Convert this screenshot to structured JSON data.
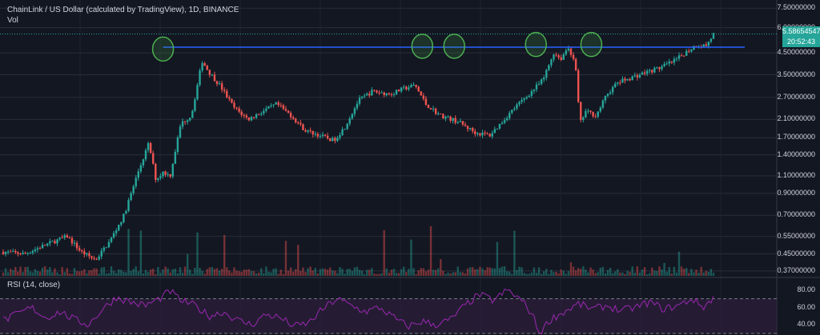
{
  "header": {
    "title": "ChainLink / US Dollar (calculated by TradingView), 1D, BINANCE",
    "vol_label": "Vol"
  },
  "rsi": {
    "label": "RSI (14, close)",
    "ticks": [
      "80.00",
      "60.00",
      "40.00"
    ]
  },
  "price_axis": {
    "ticks": [
      "7.50000000",
      "6.00000000",
      "4.50000000",
      "3.50000000",
      "2.70000000",
      "2.10000000",
      "1.70000000",
      "1.40000000",
      "1.10000000",
      "0.90000000",
      "0.70000000",
      "0.55000000",
      "0.45000000",
      "0.37000000"
    ],
    "current_price": "5.58654547",
    "countdown": "20:52:43"
  },
  "colors": {
    "background": "#131722",
    "up": "#26a69a",
    "down": "#ef5350",
    "resistance_line": "#2962ff",
    "highlight_circle": "#4caf50",
    "rsi_line": "#9c27b0",
    "rsi_band": "#2a1e3a"
  },
  "chart_data": {
    "type": "candlestick",
    "title": "ChainLink / US Dollar (calculated by TradingView), 1D, BINANCE",
    "y_scale": "log",
    "ylim": [
      0.35,
      7.8
    ],
    "resistance_level": 4.8,
    "last_price": 5.58654547,
    "highlights": [
      {
        "x": 0.225,
        "y": 4.7
      },
      {
        "x": 0.59,
        "y": 4.85
      },
      {
        "x": 0.635,
        "y": 4.85
      },
      {
        "x": 0.75,
        "y": 4.95
      },
      {
        "x": 0.828,
        "y": 4.95
      }
    ],
    "close_path": [
      [
        0.0,
        0.46
      ],
      [
        0.03,
        0.45
      ],
      [
        0.06,
        0.5
      ],
      [
        0.09,
        0.55
      ],
      [
        0.11,
        0.46
      ],
      [
        0.13,
        0.42
      ],
      [
        0.15,
        0.52
      ],
      [
        0.17,
        0.7
      ],
      [
        0.19,
        1.15
      ],
      [
        0.205,
        1.6
      ],
      [
        0.215,
        1.05
      ],
      [
        0.225,
        1.15
      ],
      [
        0.235,
        1.1
      ],
      [
        0.25,
        2.0
      ],
      [
        0.265,
        2.2
      ],
      [
        0.28,
        4.1
      ],
      [
        0.29,
        3.6
      ],
      [
        0.305,
        3.1
      ],
      [
        0.325,
        2.4
      ],
      [
        0.345,
        2.1
      ],
      [
        0.365,
        2.3
      ],
      [
        0.385,
        2.5
      ],
      [
        0.405,
        2.2
      ],
      [
        0.425,
        1.85
      ],
      [
        0.445,
        1.75
      ],
      [
        0.465,
        1.65
      ],
      [
        0.48,
        1.9
      ],
      [
        0.5,
        2.6
      ],
      [
        0.52,
        2.9
      ],
      [
        0.545,
        2.8
      ],
      [
        0.565,
        3.0
      ],
      [
        0.58,
        3.1
      ],
      [
        0.595,
        2.5
      ],
      [
        0.615,
        2.2
      ],
      [
        0.64,
        2.05
      ],
      [
        0.665,
        1.8
      ],
      [
        0.685,
        1.75
      ],
      [
        0.7,
        2.0
      ],
      [
        0.72,
        2.4
      ],
      [
        0.74,
        2.8
      ],
      [
        0.76,
        3.3
      ],
      [
        0.775,
        4.5
      ],
      [
        0.785,
        4.2
      ],
      [
        0.795,
        4.8
      ],
      [
        0.805,
        4.1
      ],
      [
        0.812,
        2.0
      ],
      [
        0.82,
        2.3
      ],
      [
        0.835,
        2.2
      ],
      [
        0.85,
        2.8
      ],
      [
        0.865,
        3.2
      ],
      [
        0.885,
        3.4
      ],
      [
        0.905,
        3.6
      ],
      [
        0.925,
        3.8
      ],
      [
        0.945,
        4.1
      ],
      [
        0.96,
        4.5
      ],
      [
        0.975,
        4.9
      ],
      [
        0.99,
        4.9
      ],
      [
        1.0,
        5.58
      ]
    ],
    "rsi_path": [
      [
        0.0,
        45
      ],
      [
        0.02,
        52
      ],
      [
        0.04,
        60
      ],
      [
        0.06,
        48
      ],
      [
        0.08,
        55
      ],
      [
        0.1,
        46
      ],
      [
        0.12,
        40
      ],
      [
        0.14,
        58
      ],
      [
        0.16,
        72
      ],
      [
        0.18,
        66
      ],
      [
        0.2,
        62
      ],
      [
        0.22,
        70
      ],
      [
        0.235,
        79
      ],
      [
        0.25,
        68
      ],
      [
        0.27,
        62
      ],
      [
        0.29,
        50
      ],
      [
        0.31,
        55
      ],
      [
        0.33,
        45
      ],
      [
        0.35,
        40
      ],
      [
        0.37,
        52
      ],
      [
        0.39,
        48
      ],
      [
        0.41,
        38
      ],
      [
        0.43,
        42
      ],
      [
        0.45,
        58
      ],
      [
        0.47,
        70
      ],
      [
        0.49,
        62
      ],
      [
        0.51,
        55
      ],
      [
        0.53,
        60
      ],
      [
        0.55,
        48
      ],
      [
        0.57,
        38
      ],
      [
        0.59,
        44
      ],
      [
        0.61,
        40
      ],
      [
        0.63,
        46
      ],
      [
        0.65,
        62
      ],
      [
        0.67,
        75
      ],
      [
        0.69,
        68
      ],
      [
        0.71,
        80
      ],
      [
        0.73,
        68
      ],
      [
        0.745,
        52
      ],
      [
        0.755,
        30
      ],
      [
        0.77,
        46
      ],
      [
        0.79,
        55
      ],
      [
        0.81,
        64
      ],
      [
        0.83,
        58
      ],
      [
        0.85,
        62
      ],
      [
        0.87,
        56
      ],
      [
        0.89,
        60
      ],
      [
        0.91,
        66
      ],
      [
        0.93,
        58
      ],
      [
        0.95,
        62
      ],
      [
        0.97,
        70
      ],
      [
        0.985,
        60
      ],
      [
        1.0,
        71
      ]
    ]
  }
}
